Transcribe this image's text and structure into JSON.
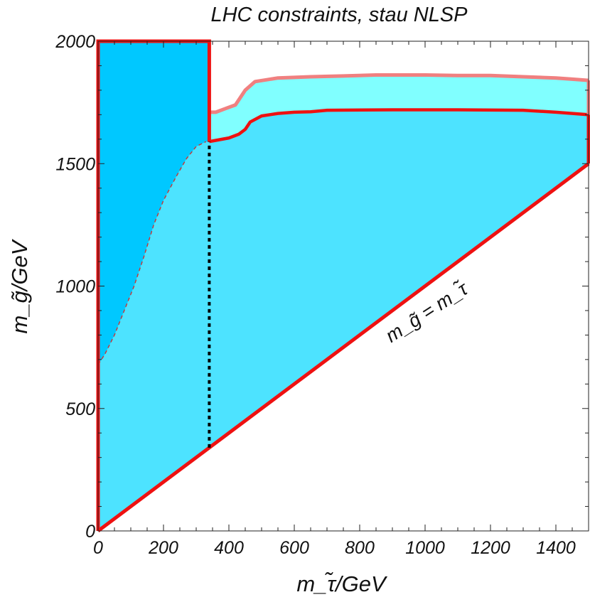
{
  "chart_data": {
    "type": "area",
    "title": "LHC constraints, stau NLSP",
    "xlabel": "m_τ̃/GeV",
    "ylabel": "m_g̃/GeV",
    "xlim": [
      0,
      1500
    ],
    "ylim": [
      0,
      2000
    ],
    "x_ticks": [
      "0",
      "200",
      "400",
      "600",
      "800",
      "1000",
      "1200",
      "1400"
    ],
    "y_ticks": [
      "0",
      "500",
      "1000",
      "1500",
      "2000"
    ],
    "annotation": "m_g̃ = m_τ̃",
    "grid": false,
    "colors": {
      "excluded_box": "#00c8ff",
      "main_region": "#4de3ff",
      "light_band": "#80ffff",
      "boundary": "#ee1111",
      "light_boundary": "#f08080",
      "dashed_curve": "#cc3333",
      "dotted_line": "#000000"
    },
    "series": [
      {
        "values": [
          [
            340,
            1710
          ],
          [
            360,
            1710
          ],
          [
            390,
            1725
          ],
          [
            420,
            1740
          ],
          [
            450,
            1800
          ],
          [
            480,
            1835
          ],
          [
            550,
            1850
          ],
          [
            650,
            1855
          ],
          [
            750,
            1858
          ],
          [
            850,
            1862
          ],
          [
            1000,
            1862
          ],
          [
            1100,
            1860
          ],
          [
            1200,
            1860
          ],
          [
            1300,
            1855
          ],
          [
            1400,
            1850
          ],
          [
            1450,
            1845
          ],
          [
            1500,
            1840
          ]
        ]
      },
      {
        "values": [
          [
            340,
            1590
          ],
          [
            360,
            1595
          ],
          [
            400,
            1605
          ],
          [
            430,
            1620
          ],
          [
            450,
            1640
          ],
          [
            465,
            1670
          ],
          [
            500,
            1695
          ],
          [
            550,
            1705
          ],
          [
            600,
            1710
          ],
          [
            650,
            1712
          ],
          [
            700,
            1718
          ],
          [
            900,
            1720
          ],
          [
            1100,
            1720
          ],
          [
            1300,
            1718
          ],
          [
            1400,
            1710
          ],
          [
            1450,
            1705
          ],
          [
            1500,
            1700
          ]
        ]
      },
      {
        "values": [
          [
            0,
            680
          ],
          [
            20,
            720
          ],
          [
            50,
            800
          ],
          [
            80,
            900
          ],
          [
            110,
            1000
          ],
          [
            140,
            1120
          ],
          [
            170,
            1250
          ],
          [
            200,
            1350
          ],
          [
            240,
            1450
          ],
          [
            270,
            1520
          ],
          [
            300,
            1570
          ],
          [
            330,
            1590
          ]
        ]
      },
      {
        "values": [
          [
            0,
            0
          ],
          [
            1500,
            1500
          ]
        ]
      },
      {
        "values": [
          [
            0,
            0
          ],
          [
            0,
            2000
          ],
          [
            340,
            2000
          ],
          [
            340,
            1590
          ]
        ]
      },
      {
        "values": [
          [
            340,
            340
          ],
          [
            340,
            1590
          ]
        ]
      }
    ]
  }
}
